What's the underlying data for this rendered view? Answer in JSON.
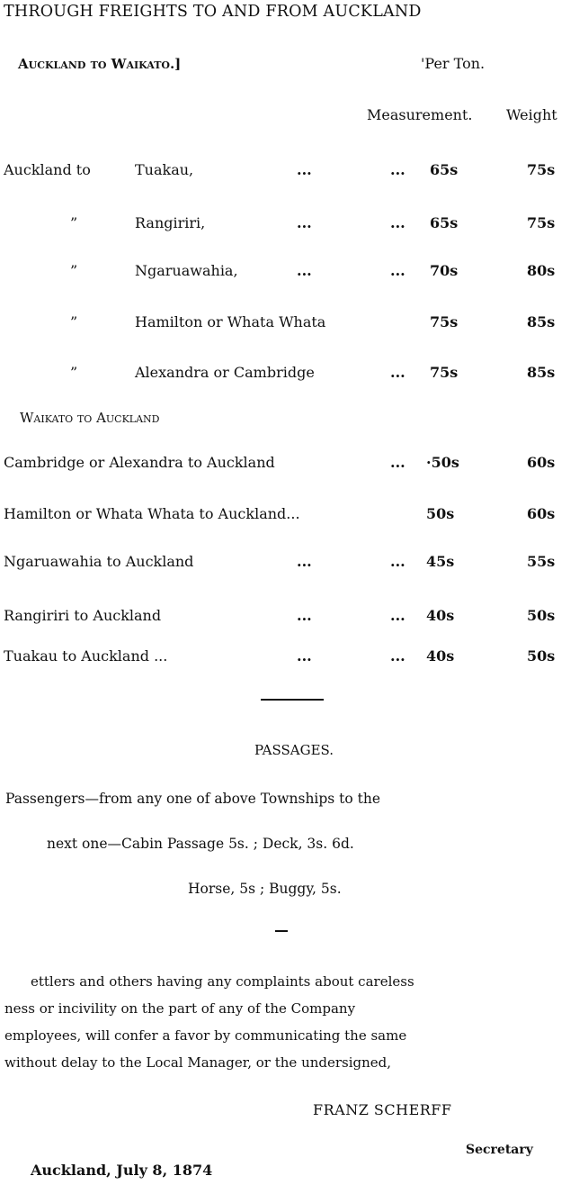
{
  "title": "THROUGH FREIGHTS TO AND FROM AUCKLAND",
  "section1": {
    "heading": "Auckland to Waikato.]",
    "per_ton": "'Per Ton.",
    "col_measurement": "Measurement.",
    "col_weight": "Weight",
    "rows": [
      {
        "prefix": "Auckland to",
        "place": "Tuakau,",
        "dots1": "...",
        "dots2": "...",
        "measurement": "65s",
        "weight": "75s"
      },
      {
        "prefix": "”",
        "place": "Rangiriri,",
        "dots1": "...",
        "dots2": "...",
        "measurement": "65s",
        "weight": "75s"
      },
      {
        "prefix": "”",
        "place": "Ngaruawahia,",
        "dots1": "...",
        "dots2": "...",
        "measurement": "70s",
        "weight": "80s"
      },
      {
        "prefix": "”",
        "place": "Hamilton or Whata Whata",
        "dots1": "",
        "dots2": "",
        "measurement": "75s",
        "weight": "85s"
      },
      {
        "prefix": "”",
        "place": "Alexandra or Cambridge",
        "dots1": "",
        "dots2": "...",
        "measurement": "75s",
        "weight": "85s"
      }
    ]
  },
  "section2": {
    "heading": "Waikato to Auckland",
    "rows": [
      {
        "place": "Cambridge or Alexandra to Auckland",
        "dots1": "",
        "dots2": "...",
        "measurement": "·50s",
        "weight": "60s"
      },
      {
        "place": "Hamilton or Whata Whata to Auckland...",
        "dots1": "",
        "dots2": "",
        "measurement": "50s",
        "weight": "60s"
      },
      {
        "place": "Ngaruawahia to Auckland",
        "dots1": "...",
        "dots2": "...",
        "measurement": "45s",
        "weight": "55s"
      },
      {
        "place": "Rangiriri to Auckland",
        "dots1": "...",
        "dots2": "...",
        "measurement": "40s",
        "weight": "50s"
      },
      {
        "place": "Tuakau to Auckland ...",
        "dots1": "...",
        "dots2": "...",
        "measurement": "40s",
        "weight": "50s"
      }
    ]
  },
  "passages": {
    "heading": "PASSAGES.",
    "line1": "Passengers—from  any  one  of  above  Townships  to the",
    "line2": "next one—Cabin Passage 5s. ; Deck, 3s. 6d.",
    "line3": "Horse, 5s ; Buggy, 5s."
  },
  "notice": {
    "lines": [
      "ettlers  and  others  having  any complaints about careless",
      "ness  or  incivility  on  the  part  of  any  of  the Company",
      "employees, will confer a favor by communicating the same",
      "without delay to the  Local Manager, or the undersigned,"
    ],
    "signatory": "FRANZ SCHERFF",
    "role": "Secretary",
    "date": "Auckland, July 8, 1874"
  }
}
